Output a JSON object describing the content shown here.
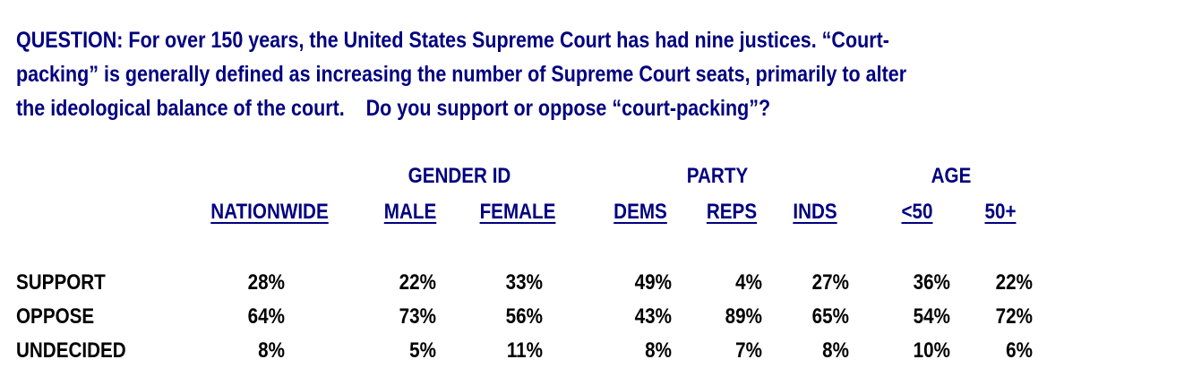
{
  "question": {
    "label": "QUESTION:",
    "lines": [
      " For over 150 years, the United States Supreme Court has had nine justices. “Court-",
      "packing” is generally defined as increasing the number of Supreme Court seats, primarily to alter",
      "the ideological balance of the court.    Do you support or oppose “court-packing”?"
    ]
  },
  "groups": [
    "GENDER ID",
    "PARTY",
    "AGE"
  ],
  "columns": [
    "NATIONWIDE",
    "MALE",
    "FEMALE",
    "DEMS",
    "REPS",
    "INDS",
    "<50",
    "50+"
  ],
  "rows": [
    {
      "label": "SUPPORT",
      "values": [
        "28%",
        "22%",
        "33%",
        "49%",
        "4%",
        "27%",
        "36%",
        "22%"
      ]
    },
    {
      "label": "OPPOSE",
      "values": [
        "64%",
        "73%",
        "56%",
        "43%",
        "89%",
        "65%",
        "54%",
        "72%"
      ]
    },
    {
      "label": "UNDECIDED",
      "values": [
        "8%",
        "5%",
        "11%",
        "8%",
        "7%",
        "8%",
        "10%",
        "6%"
      ]
    }
  ],
  "colors": {
    "heading": "#000080",
    "body": "#000000"
  }
}
